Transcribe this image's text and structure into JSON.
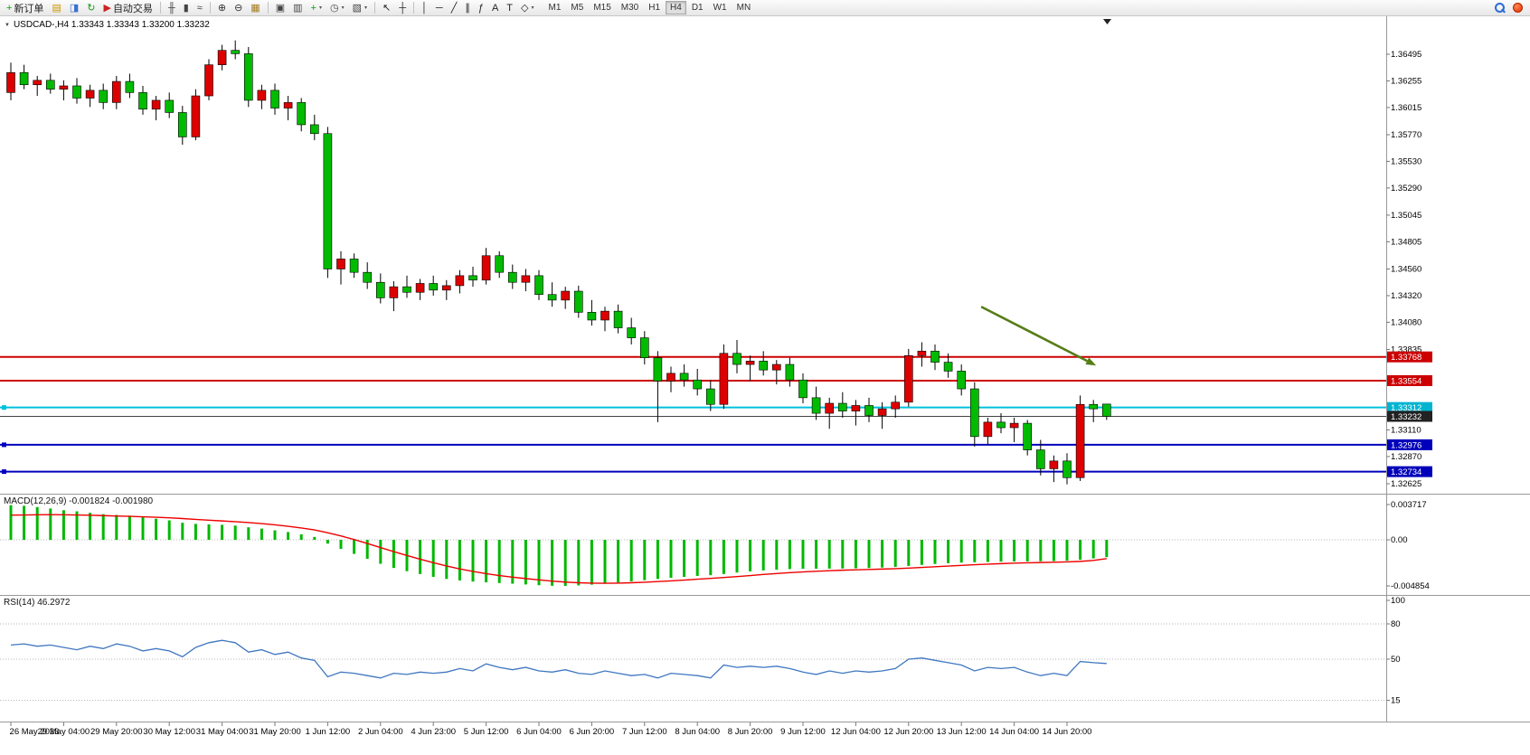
{
  "window": {
    "chart_title": "USDCAD-,H4 1.33343 1.33343 1.33200 1.33232",
    "symbol_period": "USDCAD-,H4",
    "ohlc": {
      "open": "1.33343",
      "high": "1.33343",
      "low": "1.33200",
      "close": "1.33232"
    }
  },
  "toolbar": {
    "timeframes": [
      "M1",
      "M5",
      "M15",
      "M30",
      "H1",
      "H4",
      "D1",
      "W1",
      "MN"
    ],
    "active_timeframe": "H4",
    "items": [
      {
        "name": "new-order-button",
        "glyph": "+",
        "color": "#12a012",
        "label": "新订单"
      },
      {
        "name": "new-chart-icon",
        "glyph": "▤",
        "color": "#c99700"
      },
      {
        "name": "market-watch-icon",
        "glyph": "◨",
        "color": "#3a6fd0"
      },
      {
        "name": "refresh-icon",
        "glyph": "↻",
        "color": "#189918"
      },
      {
        "name": "auto-trading-button",
        "glyph": "▶",
        "color": "#cc2222",
        "label": "自动交易"
      },
      {
        "type": "sep"
      },
      {
        "name": "ohlc-bars-icon",
        "glyph": "╫",
        "color": "#444444"
      },
      {
        "name": "candlestick-chart-icon",
        "glyph": "▮",
        "color": "#444444"
      },
      {
        "name": "line-chart-icon",
        "glyph": "≈",
        "color": "#444444"
      },
      {
        "type": "sep"
      },
      {
        "name": "zoom-in-icon",
        "glyph": "⊕",
        "color": "#333333"
      },
      {
        "name": "zoom-out-icon",
        "glyph": "⊖",
        "color": "#333333"
      },
      {
        "name": "tile-windows-icon",
        "glyph": "▦",
        "color": "#a77b1e"
      },
      {
        "type": "sep"
      },
      {
        "name": "new-window-icon",
        "glyph": "▣",
        "color": "#444444"
      },
      {
        "name": "cascade-windows-icon",
        "glyph": "▥",
        "color": "#444444"
      },
      {
        "name": "add-indicator-icon",
        "glyph": "+",
        "color": "#12a012",
        "caret": true
      },
      {
        "name": "period-selector-icon",
        "glyph": "◷",
        "color": "#444444",
        "caret": true
      },
      {
        "name": "template-icon",
        "glyph": "▧",
        "color": "#444444",
        "caret": true
      },
      {
        "type": "sep"
      },
      {
        "name": "cursor-icon",
        "glyph": "↖",
        "color": "#222222"
      },
      {
        "name": "crosshair-icon",
        "glyph": "┼",
        "color": "#222222"
      },
      {
        "type": "sep"
      },
      {
        "name": "vertical-line-icon",
        "glyph": "│",
        "color": "#222222"
      },
      {
        "name": "horizontal-line-icon",
        "glyph": "─",
        "color": "#222222"
      },
      {
        "name": "trendline-icon",
        "glyph": "╱",
        "color": "#222222"
      },
      {
        "name": "channel-icon",
        "glyph": "∥",
        "color": "#222222"
      },
      {
        "name": "fibonacci-icon",
        "glyph": "ƒ",
        "color": "#222222"
      },
      {
        "name": "text-icon",
        "glyph": "A",
        "color": "#222222"
      },
      {
        "name": "label-icon",
        "glyph": "T",
        "color": "#222222"
      },
      {
        "name": "shapes-icon",
        "glyph": "◇",
        "color": "#222222",
        "caret": true
      }
    ]
  },
  "price_axis": {
    "labels": [
      "1.36495",
      "1.36255",
      "1.36015",
      "1.35770",
      "1.35530",
      "1.35290",
      "1.35045",
      "1.34805",
      "1.34560",
      "1.34320",
      "1.34080",
      "1.33835",
      "1.33110",
      "1.32870",
      "1.32625"
    ]
  },
  "time_axis": {
    "labels": [
      "26 May 2023",
      "29 May 04:00",
      "29 May 20:00",
      "30 May 12:00",
      "31 May 04:00",
      "31 May 20:00",
      "1 Jun 12:00",
      "2 Jun 04:00",
      "4 Jun 23:00",
      "5 Jun 12:00",
      "6 Jun 04:00",
      "6 Jun 20:00",
      "7 Jun 12:00",
      "8 Jun 04:00",
      "8 Jun 20:00",
      "9 Jun 12:00",
      "12 Jun 04:00",
      "12 Jun 20:00",
      "13 Jun 12:00",
      "14 Jun 04:00",
      "14 Jun 20:00"
    ]
  },
  "chart_data": {
    "type": "candlestick",
    "symbol": "USDCAD-",
    "period": "H4",
    "colors": {
      "up": "#dd0000",
      "down": "#00bb00",
      "wick": "#000000"
    },
    "candles": [
      [
        1.3615,
        1.3642,
        1.3608,
        1.3633
      ],
      [
        1.3633,
        1.364,
        1.3618,
        1.3622
      ],
      [
        1.3622,
        1.363,
        1.3612,
        1.3626
      ],
      [
        1.3626,
        1.3632,
        1.3614,
        1.3618
      ],
      [
        1.3618,
        1.3626,
        1.3608,
        1.3621
      ],
      [
        1.3621,
        1.3628,
        1.3605,
        1.361
      ],
      [
        1.361,
        1.3622,
        1.3602,
        1.3617
      ],
      [
        1.3617,
        1.3623,
        1.36,
        1.3606
      ],
      [
        1.3606,
        1.363,
        1.36,
        1.3625
      ],
      [
        1.3625,
        1.3632,
        1.361,
        1.3615
      ],
      [
        1.3615,
        1.3621,
        1.3595,
        1.36
      ],
      [
        1.36,
        1.3612,
        1.359,
        1.3608
      ],
      [
        1.3608,
        1.3615,
        1.3592,
        1.3597
      ],
      [
        1.3597,
        1.3603,
        1.3568,
        1.3575
      ],
      [
        1.3575,
        1.3618,
        1.3572,
        1.3612
      ],
      [
        1.3612,
        1.3645,
        1.3608,
        1.364
      ],
      [
        1.364,
        1.3658,
        1.3635,
        1.3653
      ],
      [
        1.3653,
        1.3662,
        1.3645,
        1.365
      ],
      [
        1.365,
        1.3656,
        1.3602,
        1.3608
      ],
      [
        1.3608,
        1.3622,
        1.36,
        1.3617
      ],
      [
        1.3617,
        1.3623,
        1.3595,
        1.3601
      ],
      [
        1.3601,
        1.3612,
        1.359,
        1.3606
      ],
      [
        1.3606,
        1.361,
        1.358,
        1.3586
      ],
      [
        1.3586,
        1.3595,
        1.3572,
        1.3578
      ],
      [
        1.3578,
        1.3584,
        1.3448,
        1.3456
      ],
      [
        1.3456,
        1.3472,
        1.3442,
        1.3465
      ],
      [
        1.3465,
        1.347,
        1.3448,
        1.3453
      ],
      [
        1.3453,
        1.3462,
        1.3438,
        1.3444
      ],
      [
        1.3444,
        1.3452,
        1.3425,
        1.343
      ],
      [
        1.343,
        1.3445,
        1.3418,
        1.344
      ],
      [
        1.344,
        1.345,
        1.343,
        1.3435
      ],
      [
        1.3435,
        1.3447,
        1.3428,
        1.3443
      ],
      [
        1.3443,
        1.345,
        1.3432,
        1.3437
      ],
      [
        1.3437,
        1.3446,
        1.3428,
        1.3441
      ],
      [
        1.3441,
        1.3455,
        1.3434,
        1.345
      ],
      [
        1.345,
        1.3458,
        1.344,
        1.3446
      ],
      [
        1.3446,
        1.3475,
        1.3442,
        1.3468
      ],
      [
        1.3468,
        1.3472,
        1.3448,
        1.3453
      ],
      [
        1.3453,
        1.346,
        1.3438,
        1.3444
      ],
      [
        1.3444,
        1.3456,
        1.3436,
        1.345
      ],
      [
        1.345,
        1.3455,
        1.3428,
        1.3433
      ],
      [
        1.3433,
        1.3444,
        1.3422,
        1.3428
      ],
      [
        1.3428,
        1.344,
        1.342,
        1.3436
      ],
      [
        1.3436,
        1.3441,
        1.3412,
        1.3417
      ],
      [
        1.3417,
        1.3428,
        1.3405,
        1.341
      ],
      [
        1.341,
        1.3422,
        1.34,
        1.3418
      ],
      [
        1.3418,
        1.3424,
        1.3398,
        1.3403
      ],
      [
        1.3403,
        1.3412,
        1.3388,
        1.3394
      ],
      [
        1.3394,
        1.34,
        1.337,
        1.3376
      ],
      [
        1.3376,
        1.3382,
        1.3318,
        1.3355
      ],
      [
        1.3355,
        1.3368,
        1.3345,
        1.3362
      ],
      [
        1.3362,
        1.337,
        1.335,
        1.3356
      ],
      [
        1.3356,
        1.3366,
        1.3342,
        1.3348
      ],
      [
        1.3348,
        1.3356,
        1.3328,
        1.3334
      ],
      [
        1.3334,
        1.3388,
        1.333,
        1.338
      ],
      [
        1.338,
        1.3392,
        1.3362,
        1.337
      ],
      [
        1.337,
        1.3378,
        1.3355,
        1.3373
      ],
      [
        1.3373,
        1.3382,
        1.336,
        1.3365
      ],
      [
        1.3365,
        1.3374,
        1.3352,
        1.337
      ],
      [
        1.337,
        1.3376,
        1.335,
        1.3356
      ],
      [
        1.3356,
        1.3362,
        1.3335,
        1.334
      ],
      [
        1.334,
        1.335,
        1.332,
        1.3326
      ],
      [
        1.3326,
        1.334,
        1.3312,
        1.3335
      ],
      [
        1.3335,
        1.3345,
        1.3322,
        1.3328
      ],
      [
        1.3328,
        1.3338,
        1.3315,
        1.3333
      ],
      [
        1.3333,
        1.334,
        1.3318,
        1.3324
      ],
      [
        1.3324,
        1.3336,
        1.3312,
        1.333
      ],
      [
        1.333,
        1.3342,
        1.3322,
        1.3336
      ],
      [
        1.3336,
        1.3384,
        1.3332,
        1.3378
      ],
      [
        1.3378,
        1.339,
        1.3368,
        1.3382
      ],
      [
        1.3382,
        1.3388,
        1.3365,
        1.3372
      ],
      [
        1.3372,
        1.338,
        1.3358,
        1.3364
      ],
      [
        1.3364,
        1.337,
        1.3342,
        1.3348
      ],
      [
        1.3348,
        1.3354,
        1.3296,
        1.3305
      ],
      [
        1.3305,
        1.3322,
        1.3298,
        1.3318
      ],
      [
        1.3318,
        1.3326,
        1.3308,
        1.3313
      ],
      [
        1.3313,
        1.3322,
        1.33,
        1.3317
      ],
      [
        1.3317,
        1.332,
        1.3288,
        1.3293
      ],
      [
        1.3293,
        1.3302,
        1.327,
        1.3276
      ],
      [
        1.3276,
        1.3288,
        1.3264,
        1.3283
      ],
      [
        1.3283,
        1.329,
        1.3262,
        1.3268
      ],
      [
        1.3268,
        1.3342,
        1.3265,
        1.3334
      ],
      [
        1.3334,
        1.3338,
        1.3318,
        1.333
      ],
      [
        1.33343,
        1.33343,
        1.332,
        1.33232
      ]
    ],
    "hlines": [
      {
        "price": 1.33768,
        "label": "1.33768",
        "color": "#cc0000",
        "tag_bg": "#cc0000",
        "width": 2,
        "handles": false
      },
      {
        "price": 1.33554,
        "label": "1.33554",
        "color": "#cc0000",
        "tag_bg": "#cc0000",
        "width": 2,
        "handles": false
      },
      {
        "price": 1.33312,
        "label": "1.33312",
        "color": "#00c0dd",
        "tag_bg": "#00b4d0",
        "width": 2,
        "handles": true
      },
      {
        "price": 1.33232,
        "label": "1.33232",
        "color": "#444444",
        "tag_bg": "#222222",
        "width": 1,
        "handles": false
      },
      {
        "price": 1.32976,
        "label": "1.32976",
        "color": "#0000bb",
        "tag_bg": "#0000bb",
        "width": 2,
        "handles": true
      },
      {
        "price": 1.32734,
        "label": "1.32734",
        "color": "#0000bb",
        "tag_bg": "#0000bb",
        "width": 2,
        "handles": true
      }
    ],
    "arrow": {
      "bar1": 73.5,
      "price1": 1.3422,
      "bar2": 82.2,
      "price2": 1.3369,
      "color": "#567d17"
    },
    "macd": {
      "label": "MACD(12,26,9) -0.001824 -0.001980",
      "value": -0.001824,
      "signal_value": -0.00198,
      "axis": [
        "0.003717",
        "0.00",
        "-0.004854"
      ],
      "hist_color": "#00b800",
      "signal_color": "#ee0000",
      "histogram": [
        0.00365,
        0.00358,
        0.00345,
        0.0033,
        0.00312,
        0.003,
        0.00285,
        0.0027,
        0.00262,
        0.00255,
        0.0024,
        0.00222,
        0.00205,
        0.0018,
        0.00168,
        0.00162,
        0.00158,
        0.0015,
        0.00132,
        0.00118,
        0.001,
        0.00082,
        0.00058,
        0.0003,
        -0.0004,
        -0.00095,
        -0.00148,
        -0.002,
        -0.00252,
        -0.00296,
        -0.0033,
        -0.0036,
        -0.0039,
        -0.00412,
        -0.00428,
        -0.0044,
        -0.00448,
        -0.00455,
        -0.00462,
        -0.0047,
        -0.00478,
        -0.00484,
        -0.00485,
        -0.0048,
        -0.00472,
        -0.00462,
        -0.0045,
        -0.00438,
        -0.00425,
        -0.00412,
        -0.004,
        -0.0039,
        -0.0038,
        -0.00372,
        -0.0036,
        -0.00345,
        -0.00332,
        -0.00322,
        -0.00314,
        -0.00308,
        -0.00305,
        -0.00304,
        -0.00303,
        -0.00302,
        -0.003,
        -0.00297,
        -0.00292,
        -0.00285,
        -0.00275,
        -0.00264,
        -0.00254,
        -0.00246,
        -0.0024,
        -0.00236,
        -0.00233,
        -0.0023,
        -0.00228,
        -0.00227,
        -0.00226,
        -0.00224,
        -0.0022,
        -0.0021,
        -0.00196,
        -0.001824
      ],
      "signal": [
        0.0026,
        0.00262,
        0.00264,
        0.00265,
        0.00264,
        0.00262,
        0.00259,
        0.00255,
        0.00251,
        0.00247,
        0.00243,
        0.00238,
        0.00232,
        0.00224,
        0.00215,
        0.00207,
        0.00199,
        0.00191,
        0.00182,
        0.00171,
        0.00158,
        0.00143,
        0.00125,
        0.00104,
        0.00075,
        0.00041,
        3e-05,
        -0.00038,
        -0.00081,
        -0.00124,
        -0.00165,
        -0.00204,
        -0.00241,
        -0.00275,
        -0.00306,
        -0.00333,
        -0.00356,
        -0.00376,
        -0.00393,
        -0.00408,
        -0.00422,
        -0.00435,
        -0.00445,
        -0.00452,
        -0.00456,
        -0.00457,
        -0.00456,
        -0.00452,
        -0.00447,
        -0.0044,
        -0.00432,
        -0.00424,
        -0.00415,
        -0.00406,
        -0.00397,
        -0.00387,
        -0.00376,
        -0.00365,
        -0.00355,
        -0.00346,
        -0.00338,
        -0.00331,
        -0.00325,
        -0.0032,
        -0.00316,
        -0.00312,
        -0.00308,
        -0.00304,
        -0.00298,
        -0.00291,
        -0.00284,
        -0.00276,
        -0.00269,
        -0.00262,
        -0.00256,
        -0.00251,
        -0.00246,
        -0.00242,
        -0.00239,
        -0.00236,
        -0.00232,
        -0.00227,
        -0.00217,
        -0.00198
      ]
    },
    "rsi": {
      "label": "RSI(14) 46.2972",
      "value": 46.2972,
      "color": "#3f77c0",
      "levels": [
        80,
        50,
        15
      ],
      "axis_labels": [
        "100",
        "80",
        "50",
        "15"
      ],
      "series": [
        62,
        63,
        61,
        62,
        60,
        58,
        61,
        59,
        63,
        61,
        57,
        59,
        57,
        52,
        60,
        64,
        66,
        64,
        56,
        58,
        54,
        56,
        51,
        49,
        35,
        39,
        38,
        36,
        34,
        38,
        37,
        39,
        38,
        39,
        42,
        40,
        46,
        43,
        41,
        43,
        40,
        39,
        41,
        38,
        37,
        40,
        38,
        36,
        37,
        34,
        38,
        37,
        36,
        34,
        45,
        43,
        44,
        43,
        44,
        42,
        39,
        37,
        40,
        38,
        40,
        39,
        40,
        42,
        50,
        51,
        49,
        47,
        45,
        40,
        43,
        42,
        43,
        39,
        36,
        38,
        36,
        48,
        47,
        46.2972
      ]
    }
  }
}
